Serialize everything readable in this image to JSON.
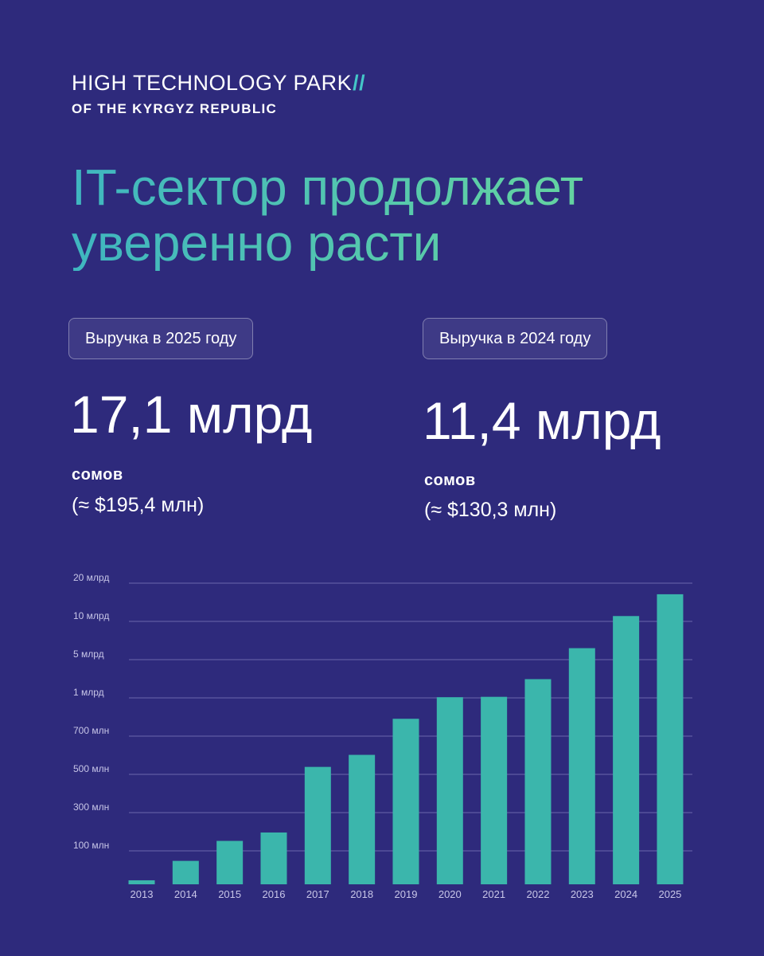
{
  "logo": {
    "line1": "HIGH TECHNOLOGY PARK",
    "slash": "//",
    "line2": "OF THE KYRGYZ REPUBLIC"
  },
  "headline": {
    "line1": "IT-сектор продолжает",
    "line2": "уверенно расти"
  },
  "stats": [
    {
      "label": "Выручка в 2025 году",
      "value": "17,1 млрд",
      "currency": "сомов",
      "usd": "(≈ $195,4 млн)"
    },
    {
      "label": "Выручка в 2024 году",
      "value": "11,4 млрд",
      "currency": "сомов",
      "usd": "(≈ $130,3 млн)"
    }
  ],
  "colors": {
    "background": "#2e2a7c",
    "bar": "#3bb6ac",
    "accent": "#44c6c8",
    "gridline": "#6a65ac",
    "axis_text": "#c8c6e8"
  },
  "chart_data": {
    "type": "bar",
    "title": "",
    "xlabel": "",
    "ylabel": "",
    "y_scale": "non-linear (custom ticks)",
    "yticks": [
      {
        "label": "100 млн",
        "value": 100000000
      },
      {
        "label": "300 млн",
        "value": 300000000
      },
      {
        "label": "500 млн",
        "value": 500000000
      },
      {
        "label": "700 млн",
        "value": 700000000
      },
      {
        "label": "1 млрд",
        "value": 1000000000
      },
      {
        "label": "5 млрд",
        "value": 5000000000
      },
      {
        "label": "10 млрд",
        "value": 10000000000
      },
      {
        "label": "20 млрд",
        "value": 20000000000
      }
    ],
    "categories": [
      "2013",
      "2014",
      "2015",
      "2016",
      "2017",
      "2018",
      "2019",
      "2020",
      "2021",
      "2022",
      "2023",
      "2024",
      "2025"
    ],
    "values": [
      12000000,
      70000000,
      152000000,
      196000000,
      539000000,
      602000000,
      836000000,
      1070000000,
      1110000000,
      2960000000,
      6500000000,
      11400000000,
      17100000000
    ],
    "grid": true,
    "legend": "none"
  }
}
